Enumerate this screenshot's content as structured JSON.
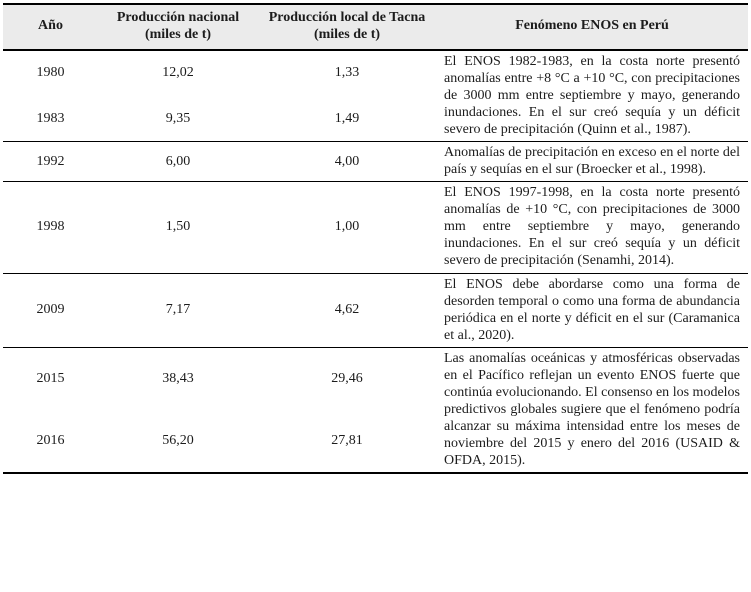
{
  "colors": {
    "background": "#ffffff",
    "header_bg": "#ebebeb",
    "border": "#000000",
    "text": "#1c1c1c"
  },
  "table": {
    "headers": [
      "Año",
      "Producción nacional (miles de t)",
      "Producción local de Tacna (miles de t)",
      "Fenómeno ENOS en Perú"
    ],
    "groups": [
      {
        "rows": [
          {
            "year": "1980",
            "national": "12,02",
            "local": "1,33"
          },
          {
            "year": "1983",
            "national": "9,35",
            "local": "1,49"
          }
        ],
        "phenomenon": "El ENOS 1982-1983, en la costa norte presentó anomalías entre +8 °C a +10 °C, con precipitaciones de 3000 mm entre septiembre y mayo, generando inundaciones. En el sur creó sequía y un déficit severo de precipitación (Quinn et al., 1987)."
      },
      {
        "rows": [
          {
            "year": "1992",
            "national": "6,00",
            "local": "4,00"
          }
        ],
        "phenomenon": "Anomalías de precipitación en exceso en el norte del país y sequías en el sur (Broecker et al., 1998)."
      },
      {
        "rows": [
          {
            "year": "1998",
            "national": "1,50",
            "local": "1,00"
          }
        ],
        "phenomenon": "El ENOS 1997-1998, en la costa norte presentó anomalías de +10 °C, con precipitaciones de 3000 mm entre septiembre y mayo, generando inundaciones. En el sur creó sequía y un déficit severo de precipitación (Senamhi, 2014)."
      },
      {
        "rows": [
          {
            "year": "2009",
            "national": "7,17",
            "local": "4,62"
          }
        ],
        "phenomenon": "El ENOS debe abordarse como una forma de desorden temporal o como una forma de abundancia periódica en el norte y déficit en el sur (Caramanica et al., 2020)."
      },
      {
        "rows": [
          {
            "year": "2015",
            "national": "38,43",
            "local": "29,46"
          },
          {
            "year": "2016",
            "national": "56,20",
            "local": "27,81"
          }
        ],
        "phenomenon": "Las anomalías oceánicas y atmosféricas observadas en el Pacífico reflejan un evento ENOS fuerte que continúa evolucionando. El consenso en los modelos predictivos globales sugiere que el fenómeno podría alcanzar su máxima intensidad entre los meses de noviembre del 2015 y enero del 2016 (USAID & OFDA, 2015)."
      }
    ]
  }
}
